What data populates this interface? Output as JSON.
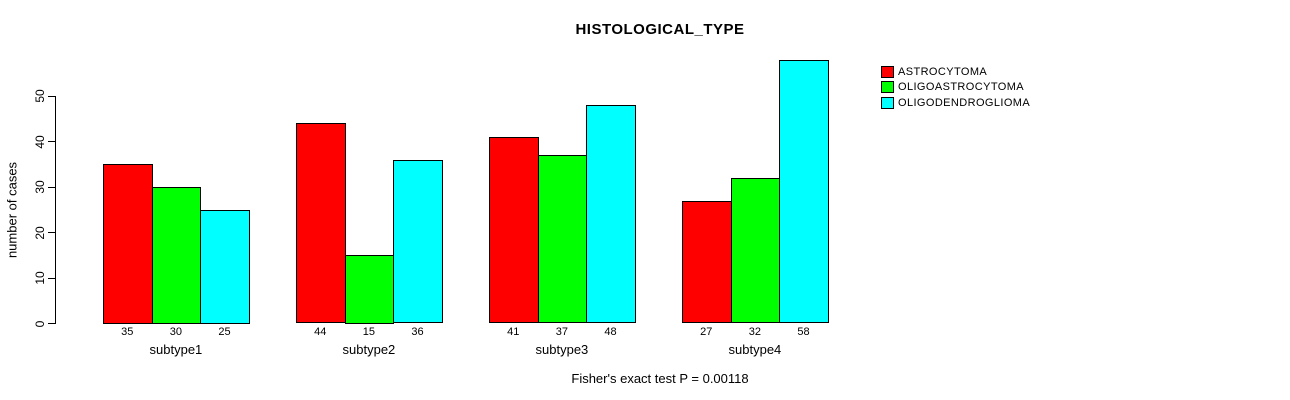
{
  "chart_data": {
    "type": "bar",
    "title": "HISTOLOGICAL_TYPE",
    "ylabel": "number of cases",
    "xlabel": "",
    "categories": [
      "subtype1",
      "subtype2",
      "subtype3",
      "subtype4"
    ],
    "series": [
      {
        "name": "ASTROCYTOMA",
        "color": "#ff0000",
        "values": [
          35,
          44,
          41,
          27
        ]
      },
      {
        "name": "OLIGOASTROCYTOMA",
        "color": "#00ff00",
        "values": [
          30,
          15,
          37,
          32
        ]
      },
      {
        "name": "OLIGODENDROGLIOMA",
        "color": "#00ffff",
        "values": [
          25,
          36,
          48,
          58
        ]
      }
    ],
    "ylim": [
      0,
      58
    ],
    "yticks": [
      0,
      10,
      20,
      30,
      40,
      50
    ],
    "grid": false,
    "legend_position": "top-right",
    "bar_value_labels": true,
    "annotation": "Fisher's exact test P = 0.00118",
    "axis_color": "#000000",
    "bar_border_color": "#000000"
  }
}
